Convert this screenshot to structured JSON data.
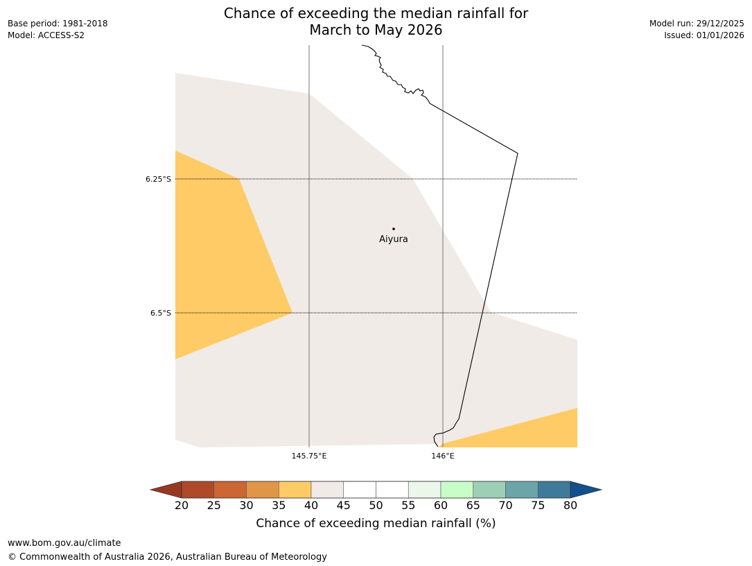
{
  "title": {
    "line1": "Chance of exceeding the median rainfall for",
    "line2": "March to May 2026"
  },
  "meta_left": {
    "base_period": "Base period: 1981-2018",
    "model": "Model: ACCESS-S2"
  },
  "meta_right": {
    "model_run": "Model run: 29/12/2025",
    "issued": "Issued: 01/01/2026"
  },
  "map": {
    "lat_labels": [
      "6.25°S",
      "6.5°S"
    ],
    "lon_labels": [
      "145.75°E",
      "146°E"
    ],
    "place": {
      "name": "Aiyura"
    },
    "fill_colors": {
      "p35_40": "#fecb67",
      "p40_45": "#f0ebe6",
      "p45_55": "#ffffff"
    }
  },
  "colorbar": {
    "title": "Chance of exceeding median rainfall (%)",
    "ticks": [
      "20",
      "25",
      "30",
      "35",
      "40",
      "45",
      "50",
      "55",
      "60",
      "65",
      "70",
      "75",
      "80"
    ],
    "under_color": "#993822",
    "over_color": "#11508d",
    "colors": [
      "#b0482a",
      "#cc6633",
      "#e19548",
      "#fecb67",
      "#f0ebe6",
      "#ffffff",
      "#ffffff",
      "#ebf7ea",
      "#c8fdc8",
      "#9ccfb6",
      "#6ba5a8",
      "#3f7a9a"
    ]
  },
  "footer": {
    "url": "www.bom.gov.au/climate",
    "copyright": "© Commonwealth of Australia 2026, Australian Bureau of Meteorology"
  }
}
